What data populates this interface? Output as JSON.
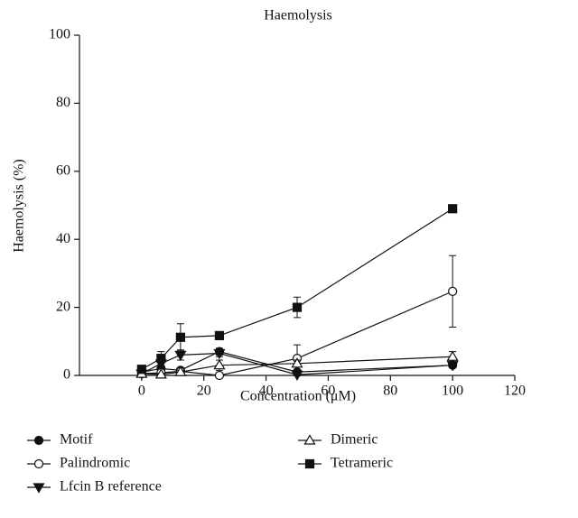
{
  "chart_data": {
    "type": "line",
    "title": "Haemolysis",
    "x_label": "Concentration (μM)",
    "y_label": "Haemolysis (%)",
    "x": [
      0,
      6.25,
      12.5,
      25,
      50,
      100
    ],
    "xlim": [
      -20,
      120
    ],
    "xticks": [
      0,
      20,
      40,
      60,
      80,
      100,
      120
    ],
    "ylim": [
      0,
      100
    ],
    "yticks": [
      0,
      20,
      40,
      60,
      80,
      100
    ],
    "series": [
      {
        "name": "Motif",
        "color": "#111111",
        "marker": "circle",
        "filled": true,
        "values": [
          1,
          2,
          1.5,
          7,
          1,
          3
        ],
        "errors": [
          0.3,
          0.5,
          0.5,
          1,
          0.5,
          0.5
        ]
      },
      {
        "name": "Palindromic",
        "color": "#111111",
        "marker": "circle",
        "filled": false,
        "values": [
          0.5,
          0.8,
          1.2,
          0,
          5,
          24.7
        ],
        "errors": [
          0.3,
          0.5,
          1,
          0.3,
          4,
          10.5
        ]
      },
      {
        "name": "Lfcin B reference",
        "color": "#111111",
        "marker": "triangle-down",
        "filled": true,
        "values": [
          0.5,
          3.5,
          6,
          6.5,
          0.2,
          3
        ],
        "errors": [
          0.3,
          1,
          1.5,
          1,
          0.3,
          0.5
        ]
      },
      {
        "name": "Dimeric",
        "color": "#111111",
        "marker": "triangle",
        "filled": false,
        "values": [
          0.5,
          0.3,
          1,
          3,
          3.5,
          5.5
        ],
        "errors": [
          0.3,
          0.3,
          0.5,
          1.5,
          1,
          1.5
        ]
      },
      {
        "name": "Tetrameric",
        "color": "#111111",
        "marker": "square",
        "filled": true,
        "values": [
          1.8,
          5,
          11.2,
          11.7,
          20,
          49
        ],
        "errors": [
          0.5,
          2,
          4,
          1,
          3,
          0.8
        ]
      }
    ]
  }
}
